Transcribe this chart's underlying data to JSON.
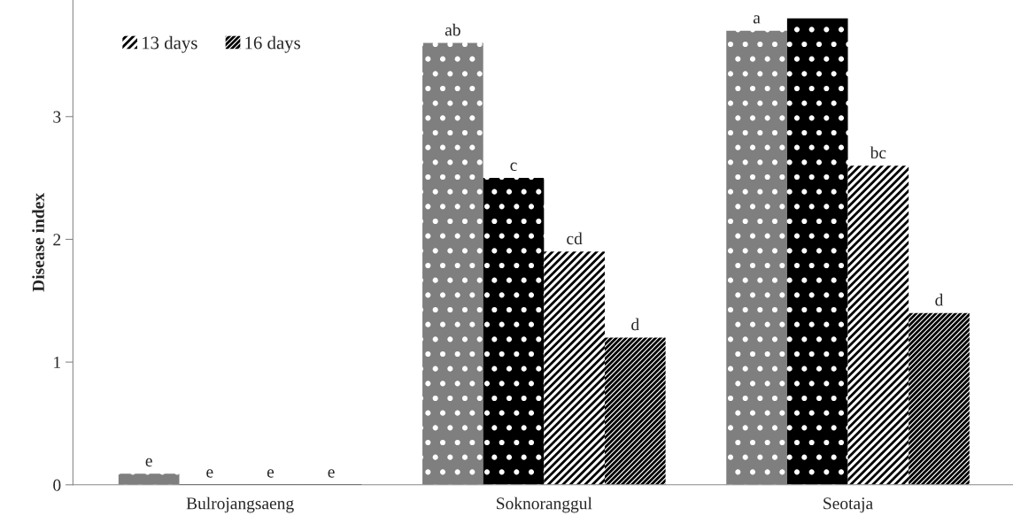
{
  "chart_data": {
    "type": "bar",
    "ylabel": "Disease index",
    "categories": [
      "Bulrojangsaeng",
      "Soknoranggul",
      "Seotaja"
    ],
    "series": [
      {
        "color": "#7f7f7f",
        "values": [
          0.09,
          3.6,
          3.7
        ],
        "value_labels": [
          "e",
          "ab",
          "a"
        ]
      },
      {
        "color": "#000000",
        "values": [
          0,
          2.5,
          3.8
        ],
        "value_labels": [
          "e",
          "c",
          null
        ]
      },
      {
        "name": "13 days",
        "color": "#000000",
        "values": [
          0,
          1.9,
          2.6
        ],
        "value_labels": [
          "e",
          "cd",
          "bc"
        ]
      },
      {
        "name": "16 days",
        "color": "#000000",
        "values": [
          0,
          1.2,
          1.4
        ],
        "value_labels": [
          "e",
          "d",
          "d"
        ]
      }
    ],
    "ylim": [
      0,
      3.95
    ],
    "yticks": [
      0,
      1,
      2,
      3
    ],
    "grid": false,
    "legend": "top left"
  }
}
